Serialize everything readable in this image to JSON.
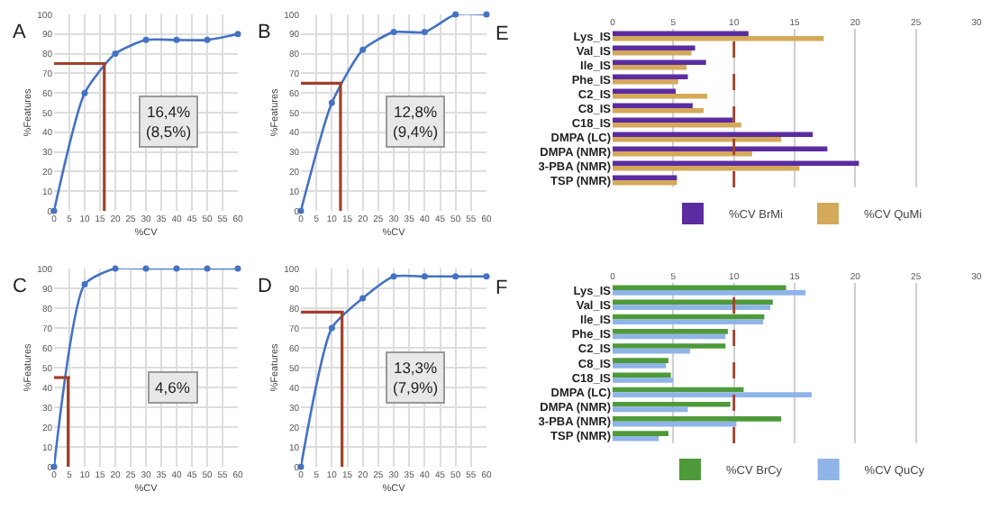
{
  "chart_data": [
    {
      "type": "line",
      "title": "A",
      "xlabel": "%CV",
      "ylabel": "%Features",
      "x": [
        0,
        10,
        20,
        30,
        40,
        50,
        60
      ],
      "series": [
        {
          "color": "#4472c4",
          "values": [
            0,
            60,
            80,
            87,
            87,
            87,
            90
          ]
        }
      ],
      "xlim": [
        0,
        60
      ],
      "xticks": [
        0,
        5,
        10,
        15,
        20,
        25,
        30,
        35,
        40,
        45,
        50,
        55,
        60
      ],
      "ylim": [
        0,
        100
      ],
      "yticks": [
        0,
        10,
        20,
        30,
        40,
        50,
        60,
        70,
        80,
        90,
        100
      ],
      "grid": true,
      "marker": "circle",
      "legend": false,
      "ref_lines": [
        {
          "axis": "x",
          "value": 16.4,
          "color": "#a0402a"
        },
        {
          "axis": "y",
          "value": 75,
          "color": "#a0402a"
        }
      ],
      "annotations": [
        "16,4%\n(8,5%)"
      ]
    },
    {
      "type": "line",
      "title": "B",
      "xlabel": "%CV",
      "ylabel": "%Features",
      "x": [
        0,
        10,
        20,
        30,
        40,
        50,
        60
      ],
      "series": [
        {
          "color": "#4472c4",
          "values": [
            0,
            55,
            82,
            91,
            91,
            100,
            100
          ]
        }
      ],
      "xlim": [
        0,
        60
      ],
      "xticks": [
        0,
        5,
        10,
        15,
        20,
        25,
        30,
        35,
        40,
        45,
        50,
        55,
        60
      ],
      "ylim": [
        0,
        100
      ],
      "yticks": [
        0,
        10,
        20,
        30,
        40,
        50,
        60,
        70,
        80,
        90,
        100
      ],
      "grid": true,
      "marker": "circle",
      "legend": false,
      "ref_lines": [
        {
          "axis": "x",
          "value": 12.8,
          "color": "#a0402a"
        },
        {
          "axis": "y",
          "value": 65,
          "color": "#a0402a"
        }
      ],
      "annotations": [
        "12,8%\n(9,4%)"
      ]
    },
    {
      "type": "line",
      "title": "C",
      "xlabel": "%CV",
      "ylabel": "%Features",
      "x": [
        0,
        10,
        20,
        30,
        40,
        50,
        60
      ],
      "series": [
        {
          "color": "#4472c4",
          "values": [
            0,
            92,
            100,
            100,
            100,
            100,
            100
          ]
        }
      ],
      "xlim": [
        0,
        60
      ],
      "xticks": [
        0,
        5,
        10,
        15,
        20,
        25,
        30,
        35,
        40,
        45,
        50,
        55,
        60
      ],
      "ylim": [
        0,
        100
      ],
      "yticks": [
        0,
        10,
        20,
        30,
        40,
        50,
        60,
        70,
        80,
        90,
        100
      ],
      "grid": true,
      "marker": "circle",
      "legend": false,
      "ref_lines": [
        {
          "axis": "x",
          "value": 4.6,
          "color": "#a0402a"
        },
        {
          "axis": "y",
          "value": 45,
          "color": "#a0402a"
        }
      ],
      "annotations": [
        "4,6%"
      ]
    },
    {
      "type": "line",
      "title": "D",
      "xlabel": "%CV",
      "ylabel": "%Features",
      "x": [
        0,
        10,
        20,
        30,
        40,
        50,
        60
      ],
      "series": [
        {
          "color": "#4472c4",
          "values": [
            0,
            70,
            85,
            96,
            96,
            96,
            96
          ]
        }
      ],
      "xlim": [
        0,
        60
      ],
      "xticks": [
        0,
        5,
        10,
        15,
        20,
        25,
        30,
        35,
        40,
        45,
        50,
        55,
        60
      ],
      "ylim": [
        0,
        100
      ],
      "yticks": [
        0,
        10,
        20,
        30,
        40,
        50,
        60,
        70,
        80,
        90,
        100
      ],
      "grid": true,
      "marker": "circle",
      "legend": false,
      "ref_lines": [
        {
          "axis": "x",
          "value": 13.3,
          "color": "#a0402a"
        },
        {
          "axis": "y",
          "value": 78,
          "color": "#a0402a"
        }
      ],
      "annotations": [
        "13,3%\n(7,9%)"
      ]
    },
    {
      "type": "bar",
      "title": "E",
      "orientation": "horizontal",
      "categories": [
        "Lys_IS",
        "Val_IS",
        "Ile_IS",
        "Phe_IS",
        "C2_IS",
        "C8_IS",
        "C18_IS",
        "DMPA (LC)",
        "DMPA (NMR)",
        "3-PBA (NMR)",
        "TSP (NMR)"
      ],
      "series": [
        {
          "name": "%CV BrMi",
          "color": "#5b2c9f",
          "values": [
            11.2,
            6.8,
            7.7,
            6.2,
            5.2,
            6.6,
            9.9,
            16.5,
            17.7,
            20.3,
            5.3
          ]
        },
        {
          "name": "%CV QuMi",
          "color": "#d4a95a",
          "values": [
            17.4,
            6.5,
            6.1,
            5.4,
            7.8,
            7.5,
            10.6,
            13.9,
            11.5,
            15.4,
            5.3
          ]
        }
      ],
      "xlim": [
        0,
        30
      ],
      "xticks": [
        0,
        5,
        10,
        15,
        20,
        25,
        30
      ],
      "grid": "x",
      "legend": "bottom",
      "ref_lines": [
        {
          "axis": "x",
          "value": 10,
          "color": "#a0402a",
          "line_style": "dashed"
        }
      ]
    },
    {
      "type": "bar",
      "title": "F",
      "orientation": "horizontal",
      "categories": [
        "Lys_IS",
        "Val_IS",
        "Ile_IS",
        "Phe_IS",
        "C2_IS",
        "C8_IS",
        "C18_IS",
        "DMPA (LC)",
        "DMPA (NMR)",
        "3-PBA (NMR)",
        "TSP (NMR)"
      ],
      "series": [
        {
          "name": "%CV BrCy",
          "color": "#4e9a3a",
          "values": [
            14.3,
            13.2,
            12.5,
            9.5,
            9.3,
            4.6,
            4.8,
            10.8,
            9.7,
            13.9,
            4.6
          ]
        },
        {
          "name": "%CV QuCy",
          "color": "#8fb4e8",
          "values": [
            15.9,
            13.0,
            12.4,
            9.3,
            6.4,
            4.4,
            5.0,
            16.4,
            6.2,
            10.2,
            3.8
          ]
        }
      ],
      "xlim": [
        0,
        30
      ],
      "xticks": [
        0,
        5,
        10,
        15,
        20,
        25,
        30
      ],
      "grid": "x",
      "legend": "bottom",
      "ref_lines": [
        {
          "axis": "x",
          "value": 10,
          "color": "#a0402a",
          "line_style": "dashed"
        }
      ]
    }
  ]
}
